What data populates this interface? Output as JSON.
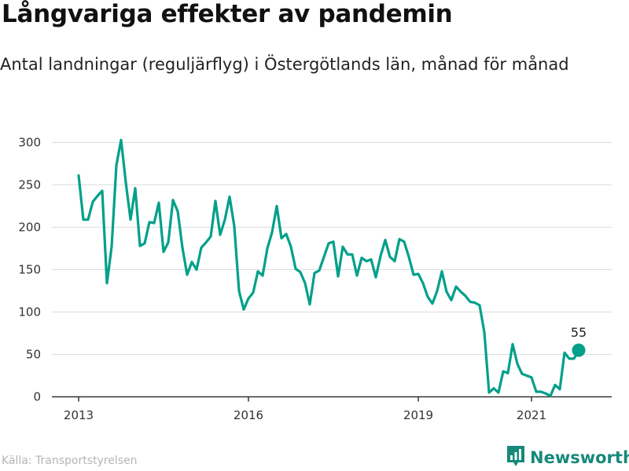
{
  "header": {
    "title": "Långvariga effekter av pandemin",
    "subtitle": "Antal landningar (reguljärflyg) i Östergötlands län, månad för månad"
  },
  "footer": {
    "source": "Källa: Transportstyrelsen",
    "brand": "Newsworthy",
    "brand_icon": "bar-chart-icon"
  },
  "colors": {
    "line": "#00a08a",
    "brand": "#16897a",
    "grid": "#dddddd"
  },
  "chart_data": {
    "type": "line",
    "title": "Långvariga effekter av pandemin",
    "subtitle": "Antal landningar (reguljärflyg) i Östergötlands län, månad för månad",
    "xlabel": "",
    "ylabel": "",
    "x_start": "2013-01",
    "x_ticks": [
      "2013",
      "2016",
      "2019",
      "2021"
    ],
    "y_ticks": [
      0,
      50,
      100,
      150,
      200,
      250,
      300
    ],
    "ylim": [
      0,
      310
    ],
    "grid": "horizontal",
    "end_label": "55",
    "series": [
      {
        "values": [
          261,
          209,
          209,
          230,
          237,
          243,
          134,
          177,
          273,
          303,
          253,
          209,
          246,
          178,
          181,
          206,
          205,
          229,
          171,
          182,
          232,
          219,
          176,
          144,
          159,
          150,
          176,
          182,
          189,
          231,
          191,
          209,
          236,
          201,
          125,
          103,
          116,
          123,
          148,
          143,
          175,
          194,
          225,
          187,
          192,
          177,
          151,
          147,
          134,
          109,
          146,
          149,
          165,
          181,
          183,
          142,
          177,
          168,
          168,
          143,
          164,
          160,
          162,
          141,
          166,
          185,
          165,
          160,
          186,
          183,
          165,
          144,
          145,
          134,
          118,
          110,
          125,
          148,
          124,
          114,
          130,
          124,
          119,
          112,
          111,
          108,
          76,
          5,
          10,
          5,
          30,
          28,
          62,
          39,
          27,
          25,
          23,
          6,
          6,
          4,
          1,
          14,
          9,
          52,
          45,
          45,
          55
        ]
      }
    ]
  }
}
